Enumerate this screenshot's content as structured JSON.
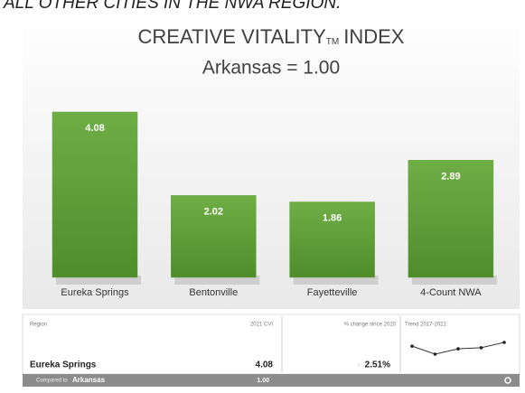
{
  "heading": "ALL OTHER CITIES IN THE NWA REGION.",
  "chart_data": {
    "type": "bar",
    "title": "CREATIVE VITALITY",
    "title_mark": "TM",
    "title_end": "INDEX",
    "subtitle": "Arkansas = 1.00",
    "categories": [
      "Eureka Springs",
      "Bentonville",
      "Fayetteville",
      "4-Count NWA"
    ],
    "values": [
      4.08,
      2.02,
      1.86,
      2.89
    ],
    "color": "#5f9e38"
  },
  "table": {
    "headers": [
      "Region",
      "2021 CVI",
      "% change since 2020",
      "Trend 2017-2021"
    ],
    "row": [
      "Eureka Springs",
      "4.08",
      "2.51%"
    ],
    "trend": [
      4.01,
      3.86,
      3.96,
      3.98,
      4.08
    ],
    "footer": {
      "prefix": "Compared to",
      "region": "Arkansas",
      "value": "1.00"
    }
  }
}
